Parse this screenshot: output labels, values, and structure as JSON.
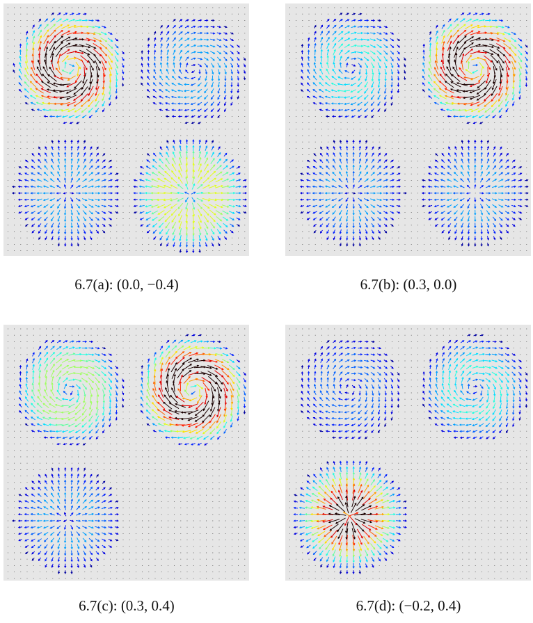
{
  "panels": [
    {
      "caption": "6.7(a): (0.0, −0.4)"
    },
    {
      "caption": "6.7(b): (0.3, 0.0)"
    },
    {
      "caption": "6.7(c): (0.3, 0.4)"
    },
    {
      "caption": "6.7(d): (−0.2, 0.4)"
    }
  ]
}
